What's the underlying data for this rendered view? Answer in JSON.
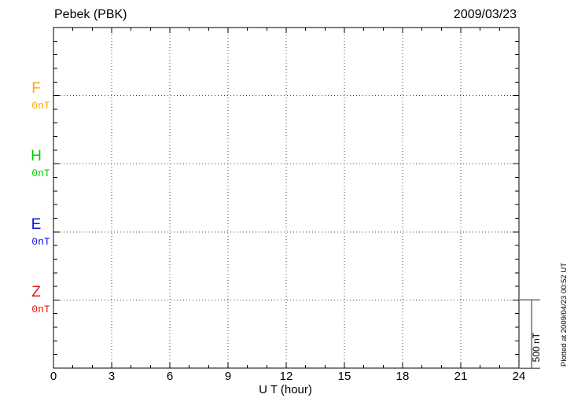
{
  "chart_data": {
    "type": "line",
    "title": "Pebek (PBK)",
    "date": "2009/03/23",
    "xlabel": "U T (hour)",
    "x_range": [
      0,
      24
    ],
    "x_minor_step_hours": 1,
    "x_major_step_hours": 3,
    "x_tick_labels": [
      "0",
      "3",
      "6",
      "9",
      "12",
      "15",
      "18",
      "21",
      "24"
    ],
    "y_minor_divisions_total": 25,
    "y_major_every_minor": 5,
    "grid_style": "dotted",
    "components": [
      {
        "name": "F",
        "baseline_label": "0nT",
        "color": "#ffaa00",
        "values": []
      },
      {
        "name": "H",
        "baseline_label": "0nT",
        "color": "#00cc00",
        "values": []
      },
      {
        "name": "E",
        "baseline_label": "0nT",
        "color": "#1111dd",
        "values": []
      },
      {
        "name": "Z",
        "baseline_label": "0nT",
        "color": "#ee1111",
        "values": []
      }
    ],
    "data_note": "no data traces plotted",
    "scale_bar": {
      "label": "500 nT",
      "value_nT": 500,
      "spans_minor_divisions": 5
    },
    "footer_note": "Plotted at 2009/04/23 00:52 UT",
    "colors": {
      "axis": "#000000",
      "grid": "#444444",
      "scale_bar": "#6e6e6e"
    }
  }
}
